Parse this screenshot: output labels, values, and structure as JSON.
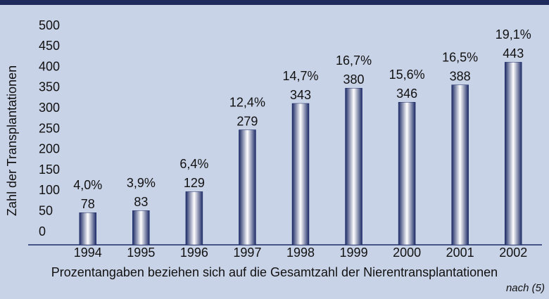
{
  "chart_data": {
    "type": "bar",
    "y_label": "Zahl der Transplantationen",
    "x_note": "Prozentangaben beziehen sich auf die Gesamtzahl der Nierentransplantationen",
    "source": "nach (5)",
    "categories": [
      "1994",
      "1995",
      "1996",
      "1997",
      "1998",
      "1999",
      "2000",
      "2001",
      "2002"
    ],
    "values": [
      78,
      83,
      129,
      279,
      343,
      380,
      346,
      388,
      443
    ],
    "percent_values": [
      4.0,
      3.9,
      6.4,
      12.4,
      14.7,
      16.7,
      15.6,
      16.5,
      19.1
    ],
    "percent_labels": [
      "4,0%",
      "3,9%",
      "6,4%",
      "12,4%",
      "14,7%",
      "16,7%",
      "15,6%",
      "16,5%",
      "19,1%"
    ],
    "color": "#1c2a66",
    "ylim": [
      0,
      500
    ],
    "yticks": [
      0,
      50,
      100,
      150,
      200,
      250,
      300,
      350,
      400,
      450,
      500
    ],
    "grid": false
  }
}
